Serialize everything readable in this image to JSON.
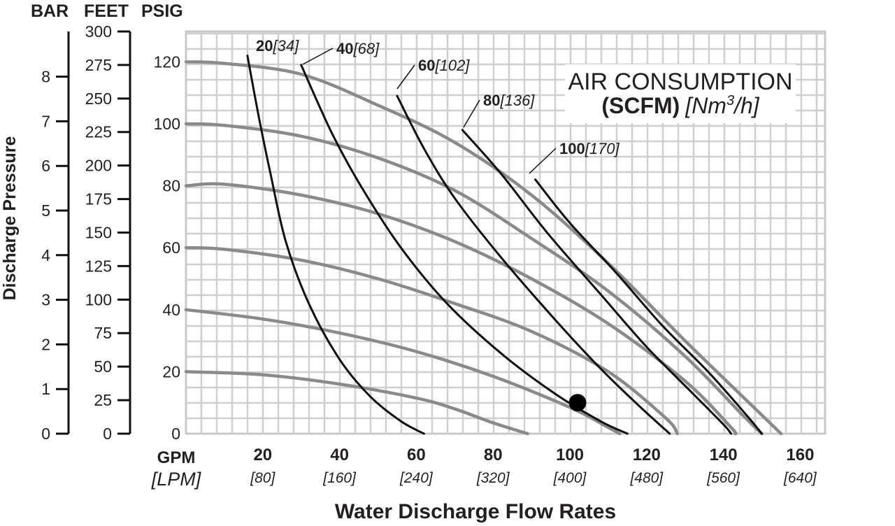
{
  "chart_data": {
    "type": "line",
    "header": {
      "bar": "BAR",
      "feet": "FEET",
      "psig": "PSIG"
    },
    "ylabel": "Discharge Pressure",
    "xlabel": "Water Discharge Flow Rates",
    "x_unit_primary": "GPM",
    "x_unit_secondary": "[LPM]",
    "xlim": [
      0,
      168
    ],
    "ylim": [
      0,
      130
    ],
    "grid": true,
    "x_ticks": [
      {
        "v": 20,
        "label": "20",
        "sub": "[80]"
      },
      {
        "v": 40,
        "label": "40",
        "sub": "[160]"
      },
      {
        "v": 60,
        "label": "60",
        "sub": "[240]"
      },
      {
        "v": 80,
        "label": "80",
        "sub": "[320]"
      },
      {
        "v": 100,
        "label": "100",
        "sub": "[400]"
      },
      {
        "v": 120,
        "label": "120",
        "sub": "[480]"
      },
      {
        "v": 140,
        "label": "140",
        "sub": "[560]"
      },
      {
        "v": 160,
        "label": "160",
        "sub": "[640]"
      }
    ],
    "psig_ticks": [
      "0",
      "20",
      "40",
      "60",
      "80",
      "100",
      "120"
    ],
    "feet_ticks": [
      "0",
      "25",
      "50",
      "75",
      "100",
      "125",
      "150",
      "175",
      "200",
      "225",
      "250",
      "275",
      "300"
    ],
    "bar_ticks": [
      "0",
      "1",
      "2",
      "3",
      "4",
      "5",
      "6",
      "7",
      "8"
    ],
    "legend": {
      "line1": "AIR CONSUMPTION",
      "line2_bold": "(SCFM)",
      "line2_italic": "[Nm",
      "sup": "3",
      "line2_tail": "/h]"
    },
    "performance_curves": [
      {
        "points": [
          [
            0,
            20
          ],
          [
            20,
            19
          ],
          [
            40,
            16
          ],
          [
            60,
            11.5
          ],
          [
            70,
            8
          ],
          [
            80,
            3.5
          ],
          [
            89,
            0
          ]
        ]
      },
      {
        "points": [
          [
            0,
            40
          ],
          [
            20,
            37
          ],
          [
            40,
            32.5
          ],
          [
            60,
            26.5
          ],
          [
            80,
            18.5
          ],
          [
            100,
            8.5
          ],
          [
            110,
            2
          ],
          [
            113,
            0
          ]
        ]
      },
      {
        "points": [
          [
            0,
            60
          ],
          [
            10,
            59.5
          ],
          [
            30,
            56
          ],
          [
            50,
            50
          ],
          [
            70,
            42
          ],
          [
            90,
            33
          ],
          [
            110,
            20
          ],
          [
            125,
            5
          ],
          [
            128,
            0
          ]
        ]
      },
      {
        "points": [
          [
            0,
            80
          ],
          [
            10,
            80.5
          ],
          [
            30,
            77
          ],
          [
            50,
            71
          ],
          [
            70,
            62
          ],
          [
            90,
            50
          ],
          [
            110,
            35.5
          ],
          [
            130,
            17
          ],
          [
            142,
            2
          ],
          [
            143,
            0
          ]
        ]
      },
      {
        "points": [
          [
            0,
            100
          ],
          [
            10,
            99.5
          ],
          [
            30,
            96
          ],
          [
            50,
            89
          ],
          [
            70,
            78.5
          ],
          [
            90,
            63
          ],
          [
            110,
            46
          ],
          [
            130,
            25
          ],
          [
            145,
            6
          ],
          [
            150,
            0
          ]
        ]
      },
      {
        "points": [
          [
            0,
            120
          ],
          [
            10,
            119.5
          ],
          [
            30,
            116
          ],
          [
            50,
            106
          ],
          [
            70,
            94
          ],
          [
            90,
            77
          ],
          [
            110,
            55
          ],
          [
            130,
            30
          ],
          [
            150,
            6
          ],
          [
            155,
            0
          ]
        ]
      }
    ],
    "air_curves": [
      {
        "bold": "20",
        "italic": "[34]",
        "points": [
          [
            16,
            122
          ],
          [
            19,
            102
          ],
          [
            22,
            84
          ],
          [
            26,
            62
          ],
          [
            32,
            42
          ],
          [
            40,
            24
          ],
          [
            48,
            12
          ],
          [
            56,
            4
          ],
          [
            62,
            0
          ]
        ]
      },
      {
        "bold": "40",
        "italic": "[68]",
        "points": [
          [
            30,
            119
          ],
          [
            38,
            97
          ],
          [
            46,
            79
          ],
          [
            56,
            60
          ],
          [
            68,
            42
          ],
          [
            82,
            26
          ],
          [
            96,
            13
          ],
          [
            108,
            4
          ],
          [
            115,
            0
          ]
        ]
      },
      {
        "bold": "60",
        "italic": "[102]",
        "points": [
          [
            55,
            109
          ],
          [
            62,
            92
          ],
          [
            70,
            76
          ],
          [
            82,
            57
          ],
          [
            96,
            37
          ],
          [
            108,
            21
          ],
          [
            118,
            9
          ],
          [
            126,
            0
          ]
        ]
      },
      {
        "bold": "80",
        "italic": "[136]",
        "points": [
          [
            72,
            98
          ],
          [
            82,
            84
          ],
          [
            94,
            65
          ],
          [
            108,
            45
          ],
          [
            120,
            28
          ],
          [
            132,
            13
          ],
          [
            140,
            3
          ],
          [
            142,
            0
          ]
        ]
      },
      {
        "bold": "100",
        "italic": "[170]",
        "points": [
          [
            91,
            82
          ],
          [
            100,
            68
          ],
          [
            112,
            52
          ],
          [
            124,
            35
          ],
          [
            136,
            20
          ],
          [
            146,
            6
          ],
          [
            150,
            0
          ]
        ]
      }
    ],
    "marker_point": {
      "x": 102,
      "y": 10
    }
  }
}
